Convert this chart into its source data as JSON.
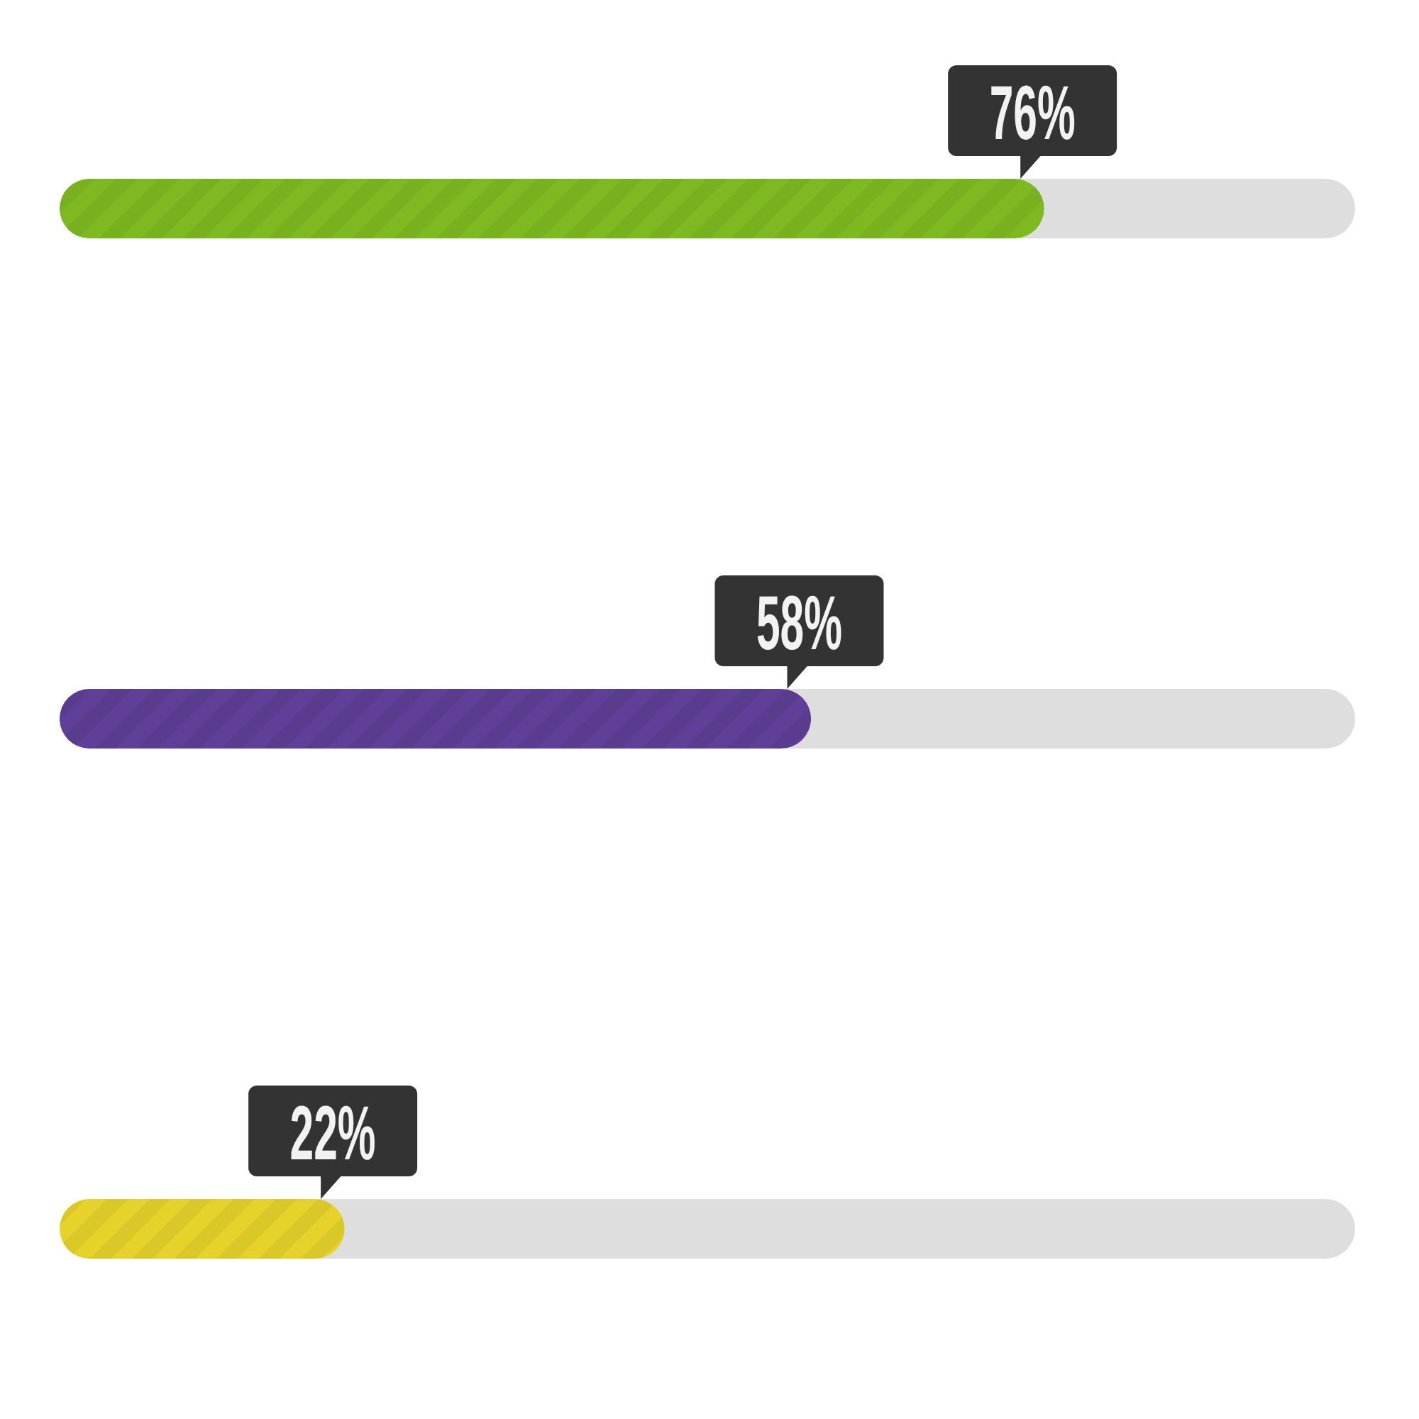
{
  "chart_data": {
    "type": "bar",
    "orientation": "horizontal",
    "categories": [
      null,
      null,
      null
    ],
    "values": [
      76,
      58,
      22
    ],
    "colors": [
      "#7dba22",
      "#5f3f97",
      "#e6d22a"
    ],
    "xlim": [
      0,
      100
    ],
    "tick_labels": false,
    "value_labels": [
      "76%",
      "58%",
      "22%"
    ]
  }
}
